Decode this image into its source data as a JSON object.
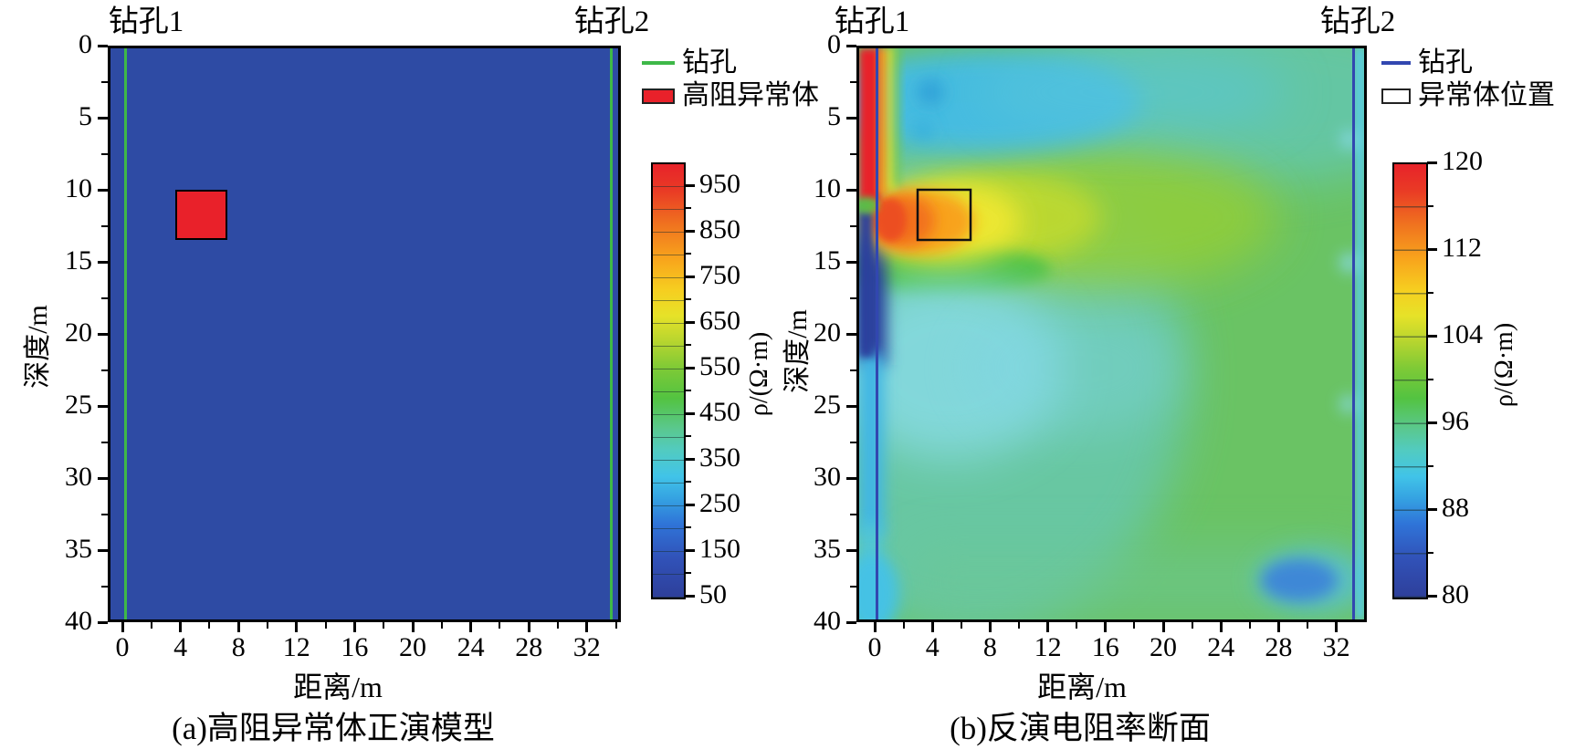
{
  "figure": {
    "panel_a": {
      "caption": "(a)高阻异常体正演模型",
      "xlabel": "距离/m",
      "ylabel": "深度/m",
      "borehole1": "钻孔1",
      "borehole2": "钻孔2",
      "x_ticks": [
        "0",
        "4",
        "8",
        "12",
        "16",
        "20",
        "24",
        "28",
        "32"
      ],
      "y_ticks": [
        "0",
        "5",
        "10",
        "15",
        "20",
        "25",
        "30",
        "35",
        "40"
      ],
      "legend": {
        "borehole_label": "钻孔",
        "anomaly_label": "高阻异常体"
      },
      "colorbar": {
        "label": "ρ/(Ω·m)",
        "ticks": [
          "950",
          "850",
          "750",
          "650",
          "550",
          "450",
          "350",
          "250",
          "150",
          "50"
        ]
      }
    },
    "panel_b": {
      "caption": "(b)反演电阻率断面",
      "xlabel": "距离/m",
      "ylabel": "深度/m",
      "borehole1": "钻孔1",
      "borehole2": "钻孔2",
      "x_ticks": [
        "0",
        "4",
        "8",
        "12",
        "16",
        "20",
        "24",
        "28",
        "32"
      ],
      "y_ticks": [
        "0",
        "5",
        "10",
        "15",
        "20",
        "25",
        "30",
        "35",
        "40"
      ],
      "legend": {
        "borehole_label": "钻孔",
        "anomaly_label": "异常体位置"
      },
      "colorbar": {
        "label": "ρ/(Ω·m)",
        "ticks": [
          "120",
          "112",
          "104",
          "96",
          "88",
          "80"
        ]
      }
    }
  },
  "chart_data": [
    {
      "type": "heatmap",
      "panel": "a",
      "title": "(a)高阻异常体正演模型",
      "xlabel": "距离/m",
      "ylabel": "深度/m",
      "x_ticks": [
        0,
        4,
        8,
        12,
        16,
        20,
        24,
        28,
        32
      ],
      "y_ticks": [
        0,
        5,
        10,
        15,
        20,
        25,
        30,
        35,
        40
      ],
      "xlim": [
        -1,
        34.4
      ],
      "depth_range_m": [
        0,
        40
      ],
      "colorbar": {
        "label": "ρ/(Ω·m)",
        "range": [
          50,
          1000
        ],
        "tick_values": [
          950,
          850,
          750,
          650,
          550,
          450,
          350,
          250,
          150,
          50
        ],
        "colormap": "jet",
        "segments": 19
      },
      "background_resistivity_ohm_m": 100,
      "anomaly_block": {
        "x_range_m": [
          3.5,
          7
        ],
        "depth_range_m": [
          10,
          13.5
        ],
        "resistivity_ohm_m": 1000,
        "fill": "#e9212a",
        "outline": "#000000"
      },
      "boreholes": [
        {
          "label": "钻孔1",
          "x_m": 0,
          "color": "#3eb848"
        },
        {
          "label": "钻孔2",
          "x_m": 33.5,
          "color": "#3eb848"
        }
      ],
      "legend": [
        {
          "label": "钻孔",
          "swatch": "green-line"
        },
        {
          "label": "高阻异常体",
          "swatch": "red-filled-rect"
        }
      ]
    },
    {
      "type": "heatmap",
      "panel": "b",
      "title": "(b)反演电阻率断面",
      "xlabel": "距离/m",
      "ylabel": "深度/m",
      "x_ticks": [
        0,
        4,
        8,
        12,
        16,
        20,
        24,
        28,
        32
      ],
      "y_ticks": [
        0,
        5,
        10,
        15,
        20,
        25,
        30,
        35,
        40
      ],
      "xlim": [
        -1.3,
        34.3
      ],
      "depth_range_m": [
        0,
        40
      ],
      "colorbar": {
        "label": "ρ/(Ω·m)",
        "range": [
          80,
          120
        ],
        "tick_values": [
          120,
          112,
          104,
          96,
          88,
          80
        ],
        "colormap": "jet",
        "segments": 10
      },
      "anomaly_outline": {
        "x_range_m": [
          3,
          6.6
        ],
        "depth_range_m": [
          10,
          13.5
        ],
        "stroke": "#111111"
      },
      "boreholes": [
        {
          "label": "钻孔1",
          "x_m": 0,
          "color": "#3247b0"
        },
        {
          "label": "钻孔2",
          "x_m": 33.3,
          "color": "#3247b0"
        }
      ],
      "legend": [
        {
          "label": "钻孔",
          "swatch": "blue-line"
        },
        {
          "label": "异常体位置",
          "swatch": "black-outline-rect"
        }
      ],
      "features": [
        {
          "name": "shallow high-resistivity strip at borehole 1",
          "x_range_m": [
            -1.3,
            1
          ],
          "depth_range_m": [
            0,
            10.5
          ],
          "value_ohm_m": "118-120"
        },
        {
          "name": "recovered high-resistivity anomaly",
          "center_m": [
            4,
            12
          ],
          "x_range_m": [
            0.5,
            10.5
          ],
          "depth_range_m": [
            9.5,
            14.5
          ],
          "peak_value_ohm_m": "110-114"
        },
        {
          "name": "low-resistivity strip at borehole 1",
          "x_range_m": [
            -1.3,
            1
          ],
          "depth_range_m": [
            11,
            25
          ],
          "value_ohm_m": "80-84",
          "grading_to": "92-96 below 25 m"
        },
        {
          "name": "shallow low-resistivity band",
          "x_range_m": [
            1,
            14
          ],
          "depth_range_m": [
            1,
            6.5
          ],
          "value_ohm_m": "90-94"
        },
        {
          "name": "mid-depth low-resistivity halo left side",
          "x_range_m": [
            1,
            13
          ],
          "depth_range_m": [
            17,
            28
          ],
          "value_ohm_m": "94-96"
        },
        {
          "name": "background field",
          "value_ohm_m": "98-104"
        },
        {
          "name": "yellow-green band right of anomaly",
          "x_range_m": [
            7,
            25
          ],
          "depth_range_m": [
            8,
            13
          ],
          "value_ohm_m": "104-108"
        },
        {
          "name": "low-resistivity blob near borehole 2",
          "x_range_m": [
            27,
            33
          ],
          "depth_range_m": [
            35,
            39
          ],
          "value_ohm_m": "88-92"
        },
        {
          "name": "edge strip right of borehole 2",
          "x_range_m": [
            33.5,
            34.3
          ],
          "depth_range_m": [
            0,
            40
          ],
          "value_ohm_m": "92-96"
        },
        {
          "name": "bottom-left cyan blob",
          "x_range_m": [
            -1.3,
            1.5
          ],
          "depth_range_m": [
            35.5,
            40
          ],
          "value_ohm_m": "90-94"
        }
      ]
    }
  ]
}
